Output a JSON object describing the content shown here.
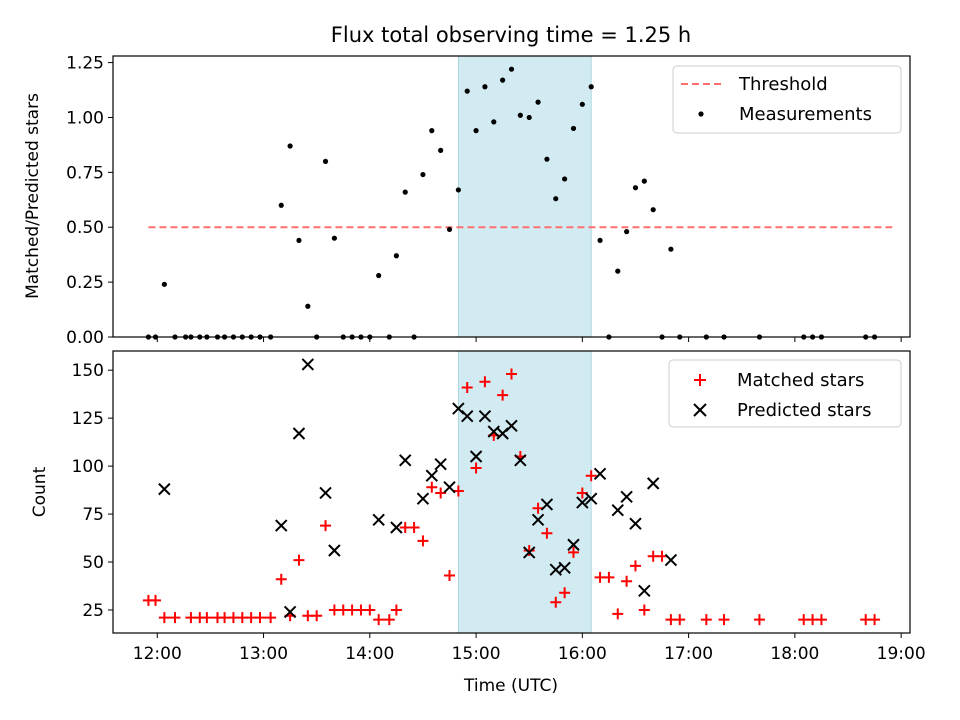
{
  "chart_data": [
    {
      "type": "scatter",
      "title": "Flux total observing time = 1.25 h",
      "xlabel": "",
      "ylabel": "Matched/Predicted stars",
      "xlim": [
        "11:35",
        "19:05"
      ],
      "ylim": [
        0,
        1.28
      ],
      "xticks": [
        "12:00",
        "13:00",
        "14:00",
        "15:00",
        "16:00",
        "17:00",
        "18:00",
        "19:00"
      ],
      "yticks": [
        "0.00",
        "0.25",
        "0.50",
        "0.75",
        "1.00",
        "1.25"
      ],
      "highlight_band": {
        "from": "14:50",
        "to": "16:05",
        "color": "#add8e6"
      },
      "legend": {
        "position": "upper right",
        "entries": [
          "Threshold",
          "Measurements"
        ]
      },
      "series": [
        {
          "name": "Threshold",
          "style": "dashed-line",
          "color": "#ff6f6f",
          "points": [
            [
              "11:55",
              0.5
            ],
            [
              "18:55",
              0.5
            ]
          ]
        },
        {
          "name": "Measurements",
          "style": "dot",
          "color": "#000000",
          "points": [
            [
              "11:55",
              0
            ],
            [
              "11:59",
              0
            ],
            [
              "12:04",
              0.24
            ],
            [
              "12:10",
              0
            ],
            [
              "12:16",
              0
            ],
            [
              "12:19",
              0
            ],
            [
              "12:24",
              0
            ],
            [
              "12:28",
              0
            ],
            [
              "12:34",
              0
            ],
            [
              "12:38",
              0
            ],
            [
              "12:43",
              0
            ],
            [
              "12:48",
              0
            ],
            [
              "12:53",
              0
            ],
            [
              "12:58",
              0
            ],
            [
              "13:04",
              0
            ],
            [
              "13:10",
              0.6
            ],
            [
              "13:15",
              0.87
            ],
            [
              "13:20",
              0.44
            ],
            [
              "13:25",
              0.14
            ],
            [
              "13:30",
              0
            ],
            [
              "13:35",
              0.8
            ],
            [
              "13:40",
              0.45
            ],
            [
              "13:45",
              0
            ],
            [
              "13:50",
              0
            ],
            [
              "13:55",
              0
            ],
            [
              "14:00",
              0
            ],
            [
              "14:05",
              0.28
            ],
            [
              "14:11",
              0
            ],
            [
              "14:15",
              0.37
            ],
            [
              "14:20",
              0.66
            ],
            [
              "14:25",
              0
            ],
            [
              "14:30",
              0.74
            ],
            [
              "14:35",
              0.94
            ],
            [
              "14:40",
              0.85
            ],
            [
              "14:45",
              0.49
            ],
            [
              "14:50",
              0.67
            ],
            [
              "14:55",
              1.12
            ],
            [
              "15:00",
              0.94
            ],
            [
              "15:05",
              1.14
            ],
            [
              "15:10",
              0.98
            ],
            [
              "15:15",
              1.17
            ],
            [
              "15:20",
              1.22
            ],
            [
              "15:25",
              1.01
            ],
            [
              "15:30",
              1.0
            ],
            [
              "15:35",
              1.07
            ],
            [
              "15:40",
              0.81
            ],
            [
              "15:45",
              0.63
            ],
            [
              "15:50",
              0.72
            ],
            [
              "15:55",
              0.95
            ],
            [
              "16:00",
              1.06
            ],
            [
              "16:05",
              1.14
            ],
            [
              "16:10",
              0.44
            ],
            [
              "16:15",
              0
            ],
            [
              "16:20",
              0.3
            ],
            [
              "16:25",
              0.48
            ],
            [
              "16:30",
              0.68
            ],
            [
              "16:35",
              0.71
            ],
            [
              "16:40",
              0.58
            ],
            [
              "16:45",
              0
            ],
            [
              "16:50",
              0.4
            ],
            [
              "16:55",
              0
            ],
            [
              "17:10",
              0
            ],
            [
              "17:20",
              0
            ],
            [
              "17:40",
              0
            ],
            [
              "18:05",
              0
            ],
            [
              "18:10",
              0
            ],
            [
              "18:15",
              0
            ],
            [
              "18:40",
              0
            ],
            [
              "18:45",
              0
            ]
          ]
        }
      ]
    },
    {
      "type": "scatter",
      "title": "",
      "xlabel": "Time (UTC)",
      "ylabel": "Count",
      "xlim": [
        "11:35",
        "19:05"
      ],
      "ylim": [
        13,
        160
      ],
      "xticks": [
        "12:00",
        "13:00",
        "14:00",
        "15:00",
        "16:00",
        "17:00",
        "18:00",
        "19:00"
      ],
      "yticks": [
        "25",
        "50",
        "75",
        "100",
        "125",
        "150"
      ],
      "highlight_band": {
        "from": "14:50",
        "to": "16:05",
        "color": "#add8e6"
      },
      "legend": {
        "position": "upper right",
        "entries": [
          "Matched stars",
          "Predicted stars"
        ]
      },
      "series": [
        {
          "name": "Matched stars",
          "marker": "plus",
          "color": "#ff0000",
          "points": [
            [
              "11:55",
              30
            ],
            [
              "11:59",
              30
            ],
            [
              "12:04",
              21
            ],
            [
              "12:10",
              21
            ],
            [
              "12:19",
              21
            ],
            [
              "12:24",
              21
            ],
            [
              "12:28",
              21
            ],
            [
              "12:34",
              21
            ],
            [
              "12:38",
              21
            ],
            [
              "12:43",
              21
            ],
            [
              "12:48",
              21
            ],
            [
              "12:53",
              21
            ],
            [
              "12:58",
              21
            ],
            [
              "13:04",
              21
            ],
            [
              "13:10",
              41
            ],
            [
              "13:15",
              22
            ],
            [
              "13:20",
              51
            ],
            [
              "13:25",
              22
            ],
            [
              "13:30",
              22
            ],
            [
              "13:35",
              69
            ],
            [
              "13:40",
              25
            ],
            [
              "13:45",
              25
            ],
            [
              "13:50",
              25
            ],
            [
              "13:55",
              25
            ],
            [
              "14:00",
              25
            ],
            [
              "14:05",
              20
            ],
            [
              "14:11",
              20
            ],
            [
              "14:15",
              25
            ],
            [
              "14:20",
              68
            ],
            [
              "14:25",
              68
            ],
            [
              "14:30",
              61
            ],
            [
              "14:35",
              89
            ],
            [
              "14:40",
              86
            ],
            [
              "14:45",
              43
            ],
            [
              "14:50",
              87
            ],
            [
              "14:55",
              141
            ],
            [
              "15:00",
              99
            ],
            [
              "15:05",
              144
            ],
            [
              "15:10",
              116
            ],
            [
              "15:15",
              137
            ],
            [
              "15:20",
              148
            ],
            [
              "15:25",
              105
            ],
            [
              "15:30",
              56
            ],
            [
              "15:35",
              78
            ],
            [
              "15:40",
              65
            ],
            [
              "15:45",
              29
            ],
            [
              "15:50",
              34
            ],
            [
              "15:55",
              55
            ],
            [
              "16:00",
              86
            ],
            [
              "16:05",
              95
            ],
            [
              "16:10",
              42
            ],
            [
              "16:15",
              42
            ],
            [
              "16:20",
              23
            ],
            [
              "16:25",
              40
            ],
            [
              "16:30",
              48
            ],
            [
              "16:35",
              25
            ],
            [
              "16:40",
              53
            ],
            [
              "16:45",
              53
            ],
            [
              "16:50",
              20
            ],
            [
              "16:55",
              20
            ],
            [
              "17:10",
              20
            ],
            [
              "17:20",
              20
            ],
            [
              "17:40",
              20
            ],
            [
              "18:05",
              20
            ],
            [
              "18:10",
              20
            ],
            [
              "18:15",
              20
            ],
            [
              "18:40",
              20
            ],
            [
              "18:45",
              20
            ]
          ]
        },
        {
          "name": "Predicted stars",
          "marker": "x",
          "color": "#000000",
          "points": [
            [
              "12:04",
              88
            ],
            [
              "13:10",
              69
            ],
            [
              "13:15",
              24
            ],
            [
              "13:20",
              117
            ],
            [
              "13:25",
              153
            ],
            [
              "13:35",
              86
            ],
            [
              "13:40",
              56
            ],
            [
              "14:05",
              72
            ],
            [
              "14:15",
              68
            ],
            [
              "14:20",
              103
            ],
            [
              "14:30",
              83
            ],
            [
              "14:35",
              95
            ],
            [
              "14:40",
              101
            ],
            [
              "14:45",
              89
            ],
            [
              "14:50",
              130
            ],
            [
              "14:55",
              126
            ],
            [
              "15:00",
              105
            ],
            [
              "15:05",
              126
            ],
            [
              "15:10",
              118
            ],
            [
              "15:15",
              117
            ],
            [
              "15:20",
              121
            ],
            [
              "15:25",
              103
            ],
            [
              "15:30",
              55
            ],
            [
              "15:35",
              72
            ],
            [
              "15:40",
              80
            ],
            [
              "15:45",
              46
            ],
            [
              "15:50",
              47
            ],
            [
              "15:55",
              59
            ],
            [
              "16:00",
              81
            ],
            [
              "16:05",
              83
            ],
            [
              "16:10",
              96
            ],
            [
              "16:20",
              77
            ],
            [
              "16:25",
              84
            ],
            [
              "16:30",
              70
            ],
            [
              "16:35",
              35
            ],
            [
              "16:40",
              91
            ],
            [
              "16:50",
              51
            ]
          ]
        }
      ]
    }
  ]
}
